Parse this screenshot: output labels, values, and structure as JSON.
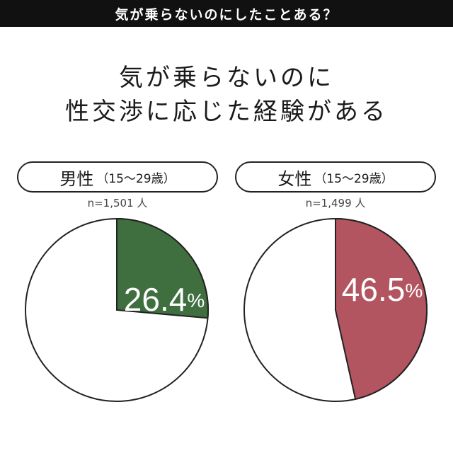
{
  "banner": {
    "title": "気が乗らないのにしたことある？"
  },
  "headline": {
    "line1": "気が乗らないのに",
    "line2": "性交渉に応じた経験がある"
  },
  "colors": {
    "male": "#3f6e3f",
    "female": "#b25561",
    "banner_bg": "#111111"
  },
  "chart_data": [
    {
      "type": "pie",
      "group": "男性",
      "group_sub": "（15〜29歳）",
      "sample": "n=1,501 人",
      "values": [
        26.4,
        73.6
      ],
      "labels": [
        "26.4%",
        ""
      ],
      "percent_number": "26.4",
      "percent_unit": "%"
    },
    {
      "type": "pie",
      "group": "女性",
      "group_sub": "（15〜29歳）",
      "sample": "n=1,499 人",
      "values": [
        46.5,
        53.5
      ],
      "labels": [
        "46.5%",
        ""
      ],
      "percent_number": "46.5",
      "percent_unit": "%"
    }
  ]
}
